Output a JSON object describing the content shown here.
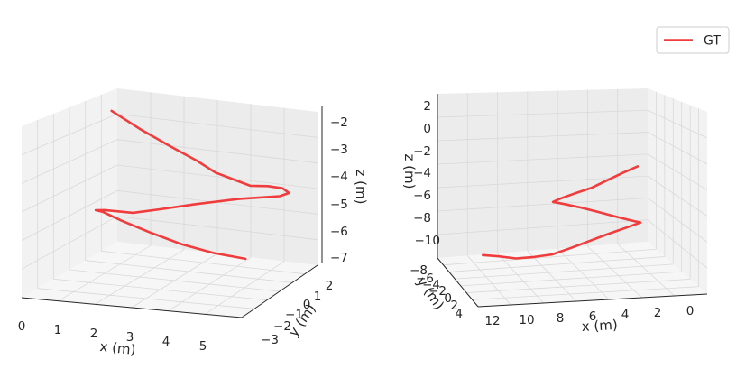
{
  "chart_data": [
    {
      "type": "line",
      "view": "3d-left",
      "xlabel": "x (m)",
      "ylabel": "y (m)",
      "zlabel": "z (m)",
      "x_ticks": [
        "0",
        "1",
        "2",
        "3",
        "4",
        "5"
      ],
      "y_ticks": [
        "−3",
        "−2",
        "−1",
        "0",
        "1",
        "2"
      ],
      "z_ticks": [
        "−2",
        "−3",
        "−4",
        "−5",
        "−6",
        "−7"
      ],
      "xlim": [
        0,
        5.5
      ],
      "ylim": [
        -3.3,
        2.3
      ],
      "zlim": [
        -7.3,
        -1.7
      ],
      "grid": true,
      "series": [
        {
          "name": "GT",
          "color": "#f03c3c",
          "x": [
            1.2,
            2.0,
            2.9,
            3.6,
            4.1,
            4.5,
            4.8,
            5.1,
            5.3,
            5.4,
            5.2,
            4.3,
            3.3,
            2.5,
            1.8,
            1.3,
            0.9,
            0.6,
            0.7,
            1.1,
            1.7,
            2.4,
            3.1,
            3.8
          ],
          "y": [
            -0.2,
            -0.5,
            -0.8,
            -1.0,
            -1.1,
            -1.0,
            -0.6,
            -0.2,
            0.3,
            0.5,
            0.4,
            0.1,
            -0.2,
            -0.4,
            -0.4,
            -0.1,
            0.2,
            0.4,
            0.6,
            0.8,
            1.1,
            1.4,
            1.7,
            2.0
          ],
          "z": [
            -2.0,
            -2.4,
            -2.8,
            -3.1,
            -3.4,
            -3.6,
            -3.9,
            -4.0,
            -4.2,
            -4.4,
            -4.5,
            -4.6,
            -4.8,
            -5.0,
            -5.2,
            -5.3,
            -5.4,
            -5.5,
            -5.6,
            -5.9,
            -6.3,
            -6.7,
            -7.0,
            -7.2
          ]
        }
      ]
    },
    {
      "type": "line",
      "view": "3d-right",
      "xlabel": "x (m)",
      "ylabel": "y (m)",
      "zlabel": "z (m)",
      "x_ticks": [
        "12",
        "10",
        "8",
        "6",
        "4",
        "2",
        "0"
      ],
      "y_ticks": [
        "−8",
        "−6",
        "−4",
        "−2",
        "0",
        "2",
        "4"
      ],
      "z_ticks": [
        "2",
        "0",
        "−2",
        "−4",
        "−6",
        "−8",
        "−10"
      ],
      "xlim": [
        -1,
        13
      ],
      "ylim": [
        -9,
        5
      ],
      "zlim": [
        -11,
        3
      ],
      "grid": true,
      "series": [
        {
          "name": "GT",
          "color": "#f03c3c",
          "x": [
            1.5,
            2.5,
            3.5,
            4.5,
            5.5,
            6.5,
            7.0,
            6.2,
            5.2,
            4.0,
            2.8,
            1.8,
            1.2,
            2.2,
            3.4,
            4.6,
            5.8,
            7.0,
            8.2,
            9.4,
            10.6,
            11.6
          ],
          "y": [
            0.5,
            0.4,
            0.2,
            0.0,
            -0.2,
            -0.3,
            -0.2,
            -0.3,
            -0.4,
            -0.4,
            -0.3,
            -0.2,
            -0.1,
            -0.2,
            -0.4,
            -0.5,
            -0.6,
            -0.6,
            -0.6,
            -0.6,
            -0.6,
            -0.6
          ],
          "z": [
            -1.5,
            -2.0,
            -2.6,
            -3.2,
            -3.6,
            -4.0,
            -4.2,
            -4.5,
            -4.9,
            -5.4,
            -5.9,
            -6.3,
            -6.5,
            -6.9,
            -7.4,
            -7.9,
            -8.4,
            -8.8,
            -8.9,
            -8.9,
            -8.6,
            -8.4
          ]
        }
      ]
    }
  ],
  "legend": {
    "entries": [
      {
        "label": "GT",
        "color": "#f03c3c"
      }
    ],
    "placement": "top-right"
  }
}
